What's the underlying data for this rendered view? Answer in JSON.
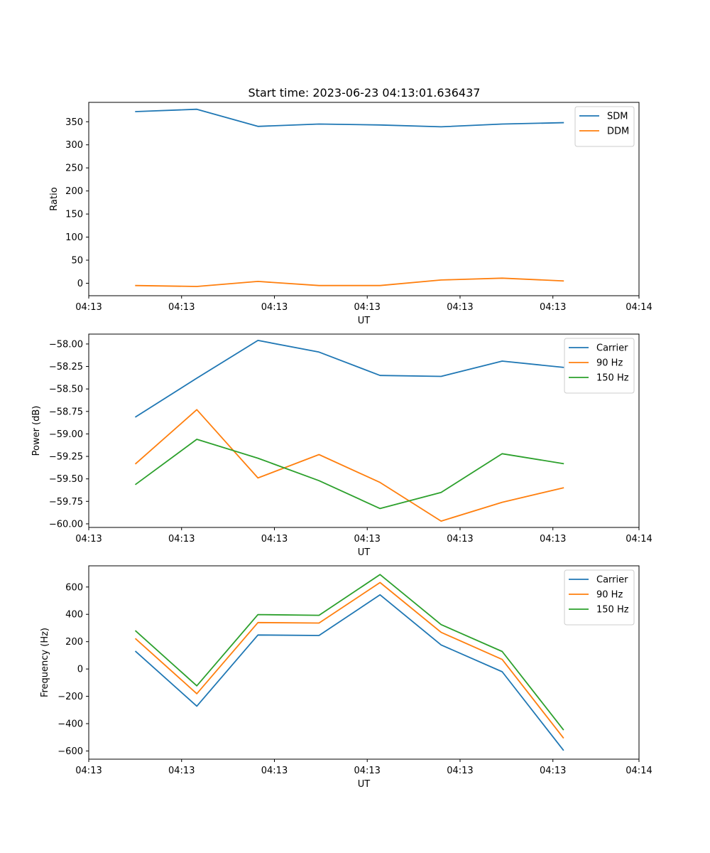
{
  "title": "Start time: 2023-06-23 04:13:01.636437",
  "chart_data": [
    {
      "type": "line",
      "title": "Start time: 2023-06-23 04:13:01.636437",
      "xlabel": "UT",
      "ylabel": "Ratio",
      "x": [
        1,
        2,
        3,
        4,
        5,
        6,
        7,
        8
      ],
      "x_tick_labels": [
        "04:13",
        "04:13",
        "04:13",
        "04:13",
        "04:13",
        "04:13",
        "04:14"
      ],
      "ylim": [
        -27,
        392
      ],
      "y_ticks": [
        0,
        50,
        100,
        150,
        200,
        250,
        300,
        350
      ],
      "legend": "top-right",
      "series": [
        {
          "name": "SDM",
          "color": "#1f77b4",
          "values": [
            372,
            377,
            340,
            345,
            343,
            339,
            345,
            348
          ]
        },
        {
          "name": "DDM",
          "color": "#ff7f0e",
          "values": [
            -5,
            -7,
            4,
            -5,
            -5,
            7,
            11,
            5
          ]
        }
      ]
    },
    {
      "type": "line",
      "xlabel": "UT",
      "ylabel": "Power (dB)",
      "x": [
        1,
        2,
        3,
        4,
        5,
        6,
        7,
        8
      ],
      "x_tick_labels": [
        "04:13",
        "04:13",
        "04:13",
        "04:13",
        "04:13",
        "04:13",
        "04:14"
      ],
      "ylim": [
        -60.04,
        -57.89
      ],
      "y_ticks": [
        -60.0,
        -59.75,
        -59.5,
        -59.25,
        -59.0,
        -58.75,
        -58.5,
        -58.25,
        -58.0
      ],
      "y_tick_labels": [
        "−60.00",
        "−59.75",
        "−59.50",
        "−59.25",
        "−59.00",
        "−58.75",
        "−58.50",
        "−58.25",
        "−58.00"
      ],
      "legend": "top-right",
      "series": [
        {
          "name": "Carrier",
          "color": "#1f77b4",
          "values": [
            -58.81,
            -58.38,
            -57.96,
            -58.09,
            -58.35,
            -58.36,
            -58.19,
            -58.26
          ]
        },
        {
          "name": "90 Hz",
          "color": "#ff7f0e",
          "values": [
            -59.33,
            -58.73,
            -59.49,
            -59.23,
            -59.54,
            -59.97,
            -59.76,
            -59.6
          ]
        },
        {
          "name": "150 Hz",
          "color": "#2ca02c",
          "values": [
            -59.56,
            -59.06,
            -59.27,
            -59.52,
            -59.83,
            -59.65,
            -59.22,
            -59.33
          ]
        }
      ]
    },
    {
      "type": "line",
      "xlabel": "UT",
      "ylabel": "Frequency (Hz)",
      "x": [
        1,
        2,
        3,
        4,
        5,
        6,
        7,
        8
      ],
      "x_tick_labels": [
        "04:13",
        "04:13",
        "04:13",
        "04:13",
        "04:13",
        "04:13",
        "04:14"
      ],
      "ylim": [
        -660,
        755
      ],
      "y_ticks": [
        -600,
        -400,
        -200,
        0,
        200,
        400,
        600
      ],
      "y_tick_labels": [
        "−600",
        "−400",
        "−200",
        "0",
        "200",
        "400",
        "600"
      ],
      "legend": "top-right",
      "series": [
        {
          "name": "Carrier",
          "color": "#1f77b4",
          "values": [
            128,
            -272,
            249,
            245,
            543,
            176,
            -20,
            -593
          ]
        },
        {
          "name": "90 Hz",
          "color": "#ff7f0e",
          "values": [
            220,
            -181,
            340,
            336,
            633,
            268,
            70,
            -503
          ]
        },
        {
          "name": "150 Hz",
          "color": "#2ca02c",
          "values": [
            278,
            -123,
            398,
            393,
            691,
            325,
            128,
            -443
          ]
        }
      ]
    }
  ]
}
